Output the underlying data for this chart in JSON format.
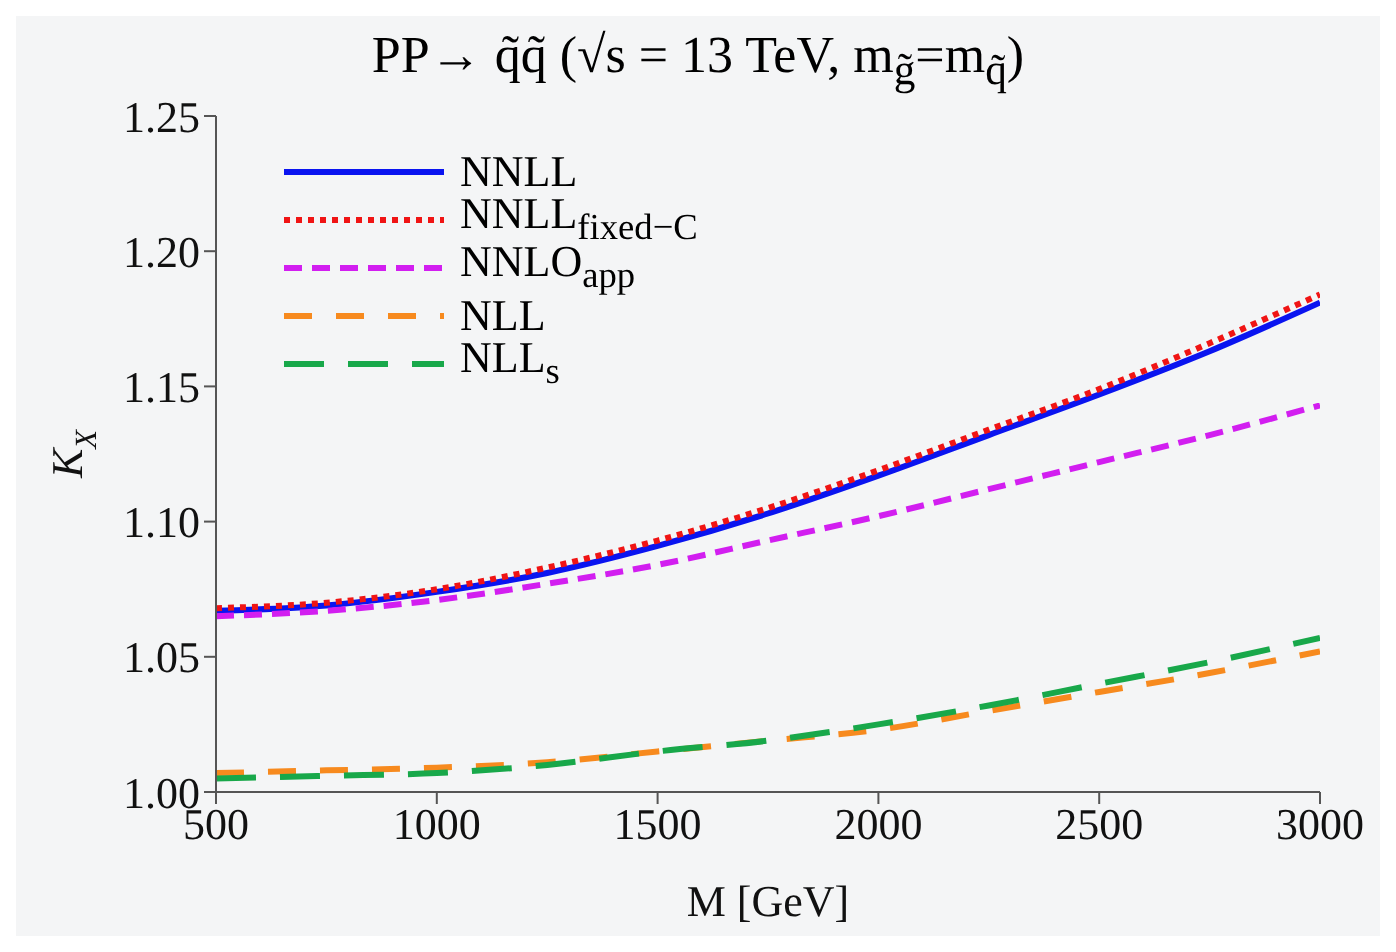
{
  "chart_data": {
    "type": "line",
    "title": "PP→ q̃q̃  (√s = 13 TeV, m$_{g̃}$=m$_{q̃}$)",
    "xlabel": "M [GeV]",
    "ylabel": "K$_{X}$",
    "x": [
      500,
      750,
      1000,
      1250,
      1500,
      1750,
      2000,
      2250,
      2500,
      2750,
      3000
    ],
    "series": [
      {
        "name": "NNLL",
        "color": "#0a14f0",
        "line_style": "solid",
        "values": [
          1.067,
          1.069,
          1.074,
          1.081,
          1.091,
          1.103,
          1.117,
          1.132,
          1.147,
          1.163,
          1.181
        ]
      },
      {
        "name": "NNLL$_{fixed−C}$",
        "color": "#f01414",
        "line_style": "dotted",
        "values": [
          1.068,
          1.07,
          1.075,
          1.083,
          1.093,
          1.105,
          1.119,
          1.134,
          1.149,
          1.166,
          1.184
        ]
      },
      {
        "name": "NNLO$_{app}$",
        "color": "#d21ef0",
        "line_style": "dashed",
        "values": [
          1.065,
          1.067,
          1.071,
          1.077,
          1.084,
          1.093,
          1.102,
          1.112,
          1.122,
          1.132,
          1.143
        ]
      },
      {
        "name": "NLL",
        "color": "#f78a1e",
        "line_style": "dashed",
        "values": [
          1.007,
          1.008,
          1.009,
          1.011,
          1.015,
          1.019,
          1.023,
          1.03,
          1.037,
          1.044,
          1.052
        ]
      },
      {
        "name": "NLL$_{s}$",
        "color": "#18a84a",
        "line_style": "dashed",
        "values": [
          1.005,
          1.006,
          1.007,
          1.01,
          1.015,
          1.019,
          1.025,
          1.032,
          1.04,
          1.048,
          1.057
        ]
      }
    ],
    "xlim": [
      500,
      3000
    ],
    "xticks": [
      500,
      1000,
      1500,
      2000,
      2500,
      3000
    ],
    "ylim": [
      1,
      1.25
    ],
    "yticks": [
      {
        "value": 1,
        "label": "1.00"
      },
      {
        "value": 1.05,
        "label": "1.05"
      },
      {
        "value": 1.1,
        "label": "1.10"
      },
      {
        "value": 1.15,
        "label": "1.15"
      },
      {
        "value": 1.2,
        "label": "1.20"
      },
      {
        "value": 1.25,
        "label": "1.25"
      }
    ],
    "grid": false,
    "legend": "top left",
    "marker": "none"
  }
}
